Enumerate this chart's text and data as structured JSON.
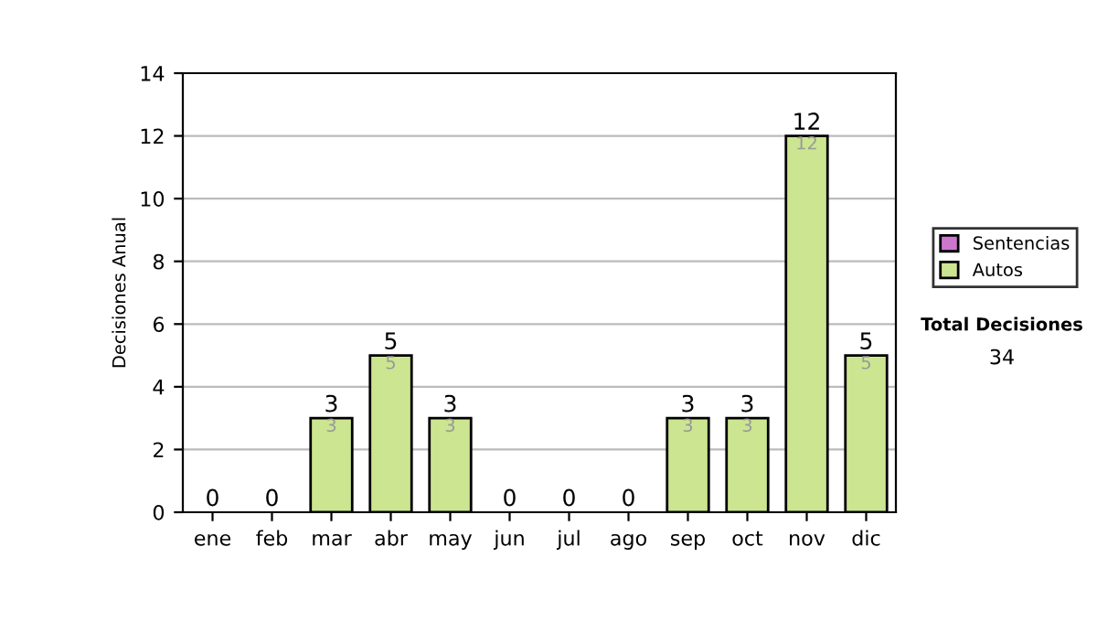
{
  "chart_data": {
    "type": "bar",
    "stacked": true,
    "ylabel": "Decisiones Anual",
    "categories": [
      "ene",
      "feb",
      "mar",
      "abr",
      "may",
      "jun",
      "jul",
      "ago",
      "sep",
      "oct",
      "nov",
      "dic"
    ],
    "series": [
      {
        "name": "Sentencias",
        "color": "#cc77cc",
        "values": [
          0,
          0,
          0,
          0,
          0,
          0,
          0,
          0,
          0,
          0,
          0,
          0
        ]
      },
      {
        "name": "Autos",
        "color": "#cce590",
        "values": [
          0,
          0,
          3,
          5,
          3,
          0,
          0,
          0,
          3,
          3,
          12,
          5
        ],
        "value_labels": [
          null,
          null,
          "3",
          "5",
          "3",
          null,
          null,
          null,
          "3",
          "3",
          "12",
          "5"
        ]
      }
    ],
    "totals": [
      "0",
      "0",
      "3",
      "5",
      "3",
      "0",
      "0",
      "0",
      "3",
      "3",
      "12",
      "5"
    ],
    "ylim": [
      0,
      14
    ],
    "yticks": [
      0,
      2,
      4,
      6,
      8,
      10,
      12,
      14
    ],
    "grid": "y",
    "legend": "right",
    "annotations": [
      "Total Decisiones",
      "34"
    ]
  }
}
